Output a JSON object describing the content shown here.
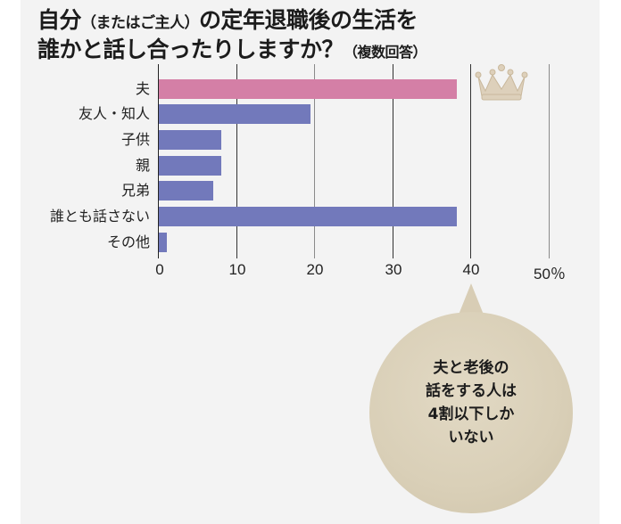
{
  "title": {
    "line1_main_a": "自分",
    "line1_paren": "（またはご主人）",
    "line1_main_b": "の定年退職後の生活を",
    "line2_main": "誰かと話し合ったりしますか？",
    "line2_note": "（複数回答）"
  },
  "chart_data": {
    "type": "bar",
    "orientation": "horizontal",
    "title": "自分（またはご主人）の定年退職後の生活を誰かと話し合ったりしますか？（複数回答）",
    "categories": [
      "夫",
      "友人・知人",
      "子供",
      "親",
      "兄弟",
      "誰とも話さない",
      "その他"
    ],
    "values": [
      38.2,
      19.4,
      8.0,
      8.0,
      7.0,
      38.2,
      1.0
    ],
    "colors": [
      "#d47fa6",
      "#7279bb",
      "#7279bb",
      "#7279bb",
      "#7279bb",
      "#7279bb",
      "#7279bb"
    ],
    "xlabel": "%",
    "ylabel": "",
    "xlim": [
      0,
      50
    ],
    "xticks": [
      "0",
      "10",
      "20",
      "30",
      "40",
      "50%"
    ],
    "grid": true,
    "annotation": "夫と老後の話をする人は4割以下しかいない"
  },
  "labels": [
    "夫",
    "友人・知人",
    "子供",
    "親",
    "兄弟",
    "誰とも話さない",
    "その他"
  ],
  "ticks": [
    "0",
    "10",
    "20",
    "30",
    "40",
    "50％"
  ],
  "bubble": {
    "line1": "夫と老後の",
    "line2": "話をする人は",
    "line3": "4割以下しか",
    "line4": "いない"
  },
  "colors": {
    "highlight": "#d47fa6",
    "bar": "#7279bb",
    "bubble": "#d9cfb7",
    "background": "#f3f3f3"
  },
  "icons": {
    "crown": "crown-icon"
  }
}
